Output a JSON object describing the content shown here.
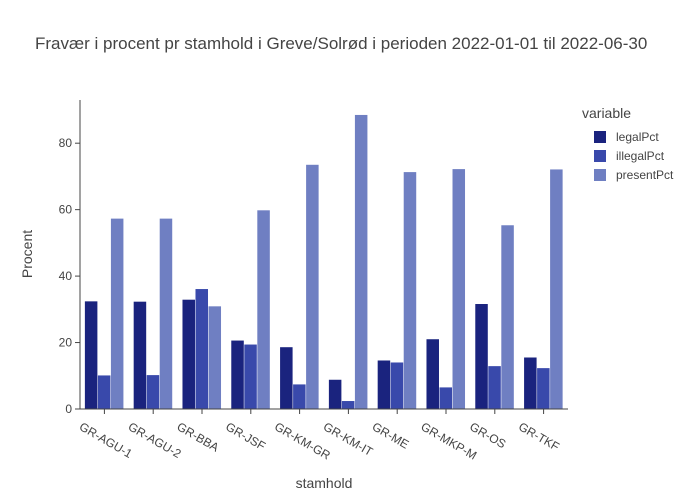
{
  "chart_data": {
    "type": "bar",
    "title": "Fravær i procent pr stamhold i Greve/Solrød i perioden 2022-01-01 til 2022-06-30",
    "xlabel": "stamhold",
    "ylabel": "Procent",
    "ylim": [
      0,
      93
    ],
    "yticks": [
      0,
      20,
      40,
      60,
      80
    ],
    "grid": false,
    "legend_title": "variable",
    "legend_position": "top-right",
    "categories": [
      "GR-AGU-1",
      "GR-AGU-2",
      "GR-BBA",
      "GR-JSF",
      "GR-KM-GR",
      "GR-KM-IT",
      "GR-ME",
      "GR-MKP-M",
      "GR-OS",
      "GR-TKF"
    ],
    "series": [
      {
        "name": "legalPct",
        "color": "#1a237e",
        "values": [
          32.4,
          32.3,
          32.9,
          20.6,
          18.6,
          8.8,
          14.6,
          21.0,
          31.6,
          15.5
        ]
      },
      {
        "name": "illegalPct",
        "color": "#3949ab",
        "values": [
          10.1,
          10.2,
          36.1,
          19.4,
          7.4,
          2.4,
          14.0,
          6.5,
          12.9,
          12.3
        ]
      },
      {
        "name": "presentPct",
        "color": "#6f7fc2",
        "values": [
          57.3,
          57.3,
          30.9,
          59.8,
          73.5,
          88.5,
          71.3,
          72.2,
          55.3,
          72.1
        ]
      }
    ]
  }
}
